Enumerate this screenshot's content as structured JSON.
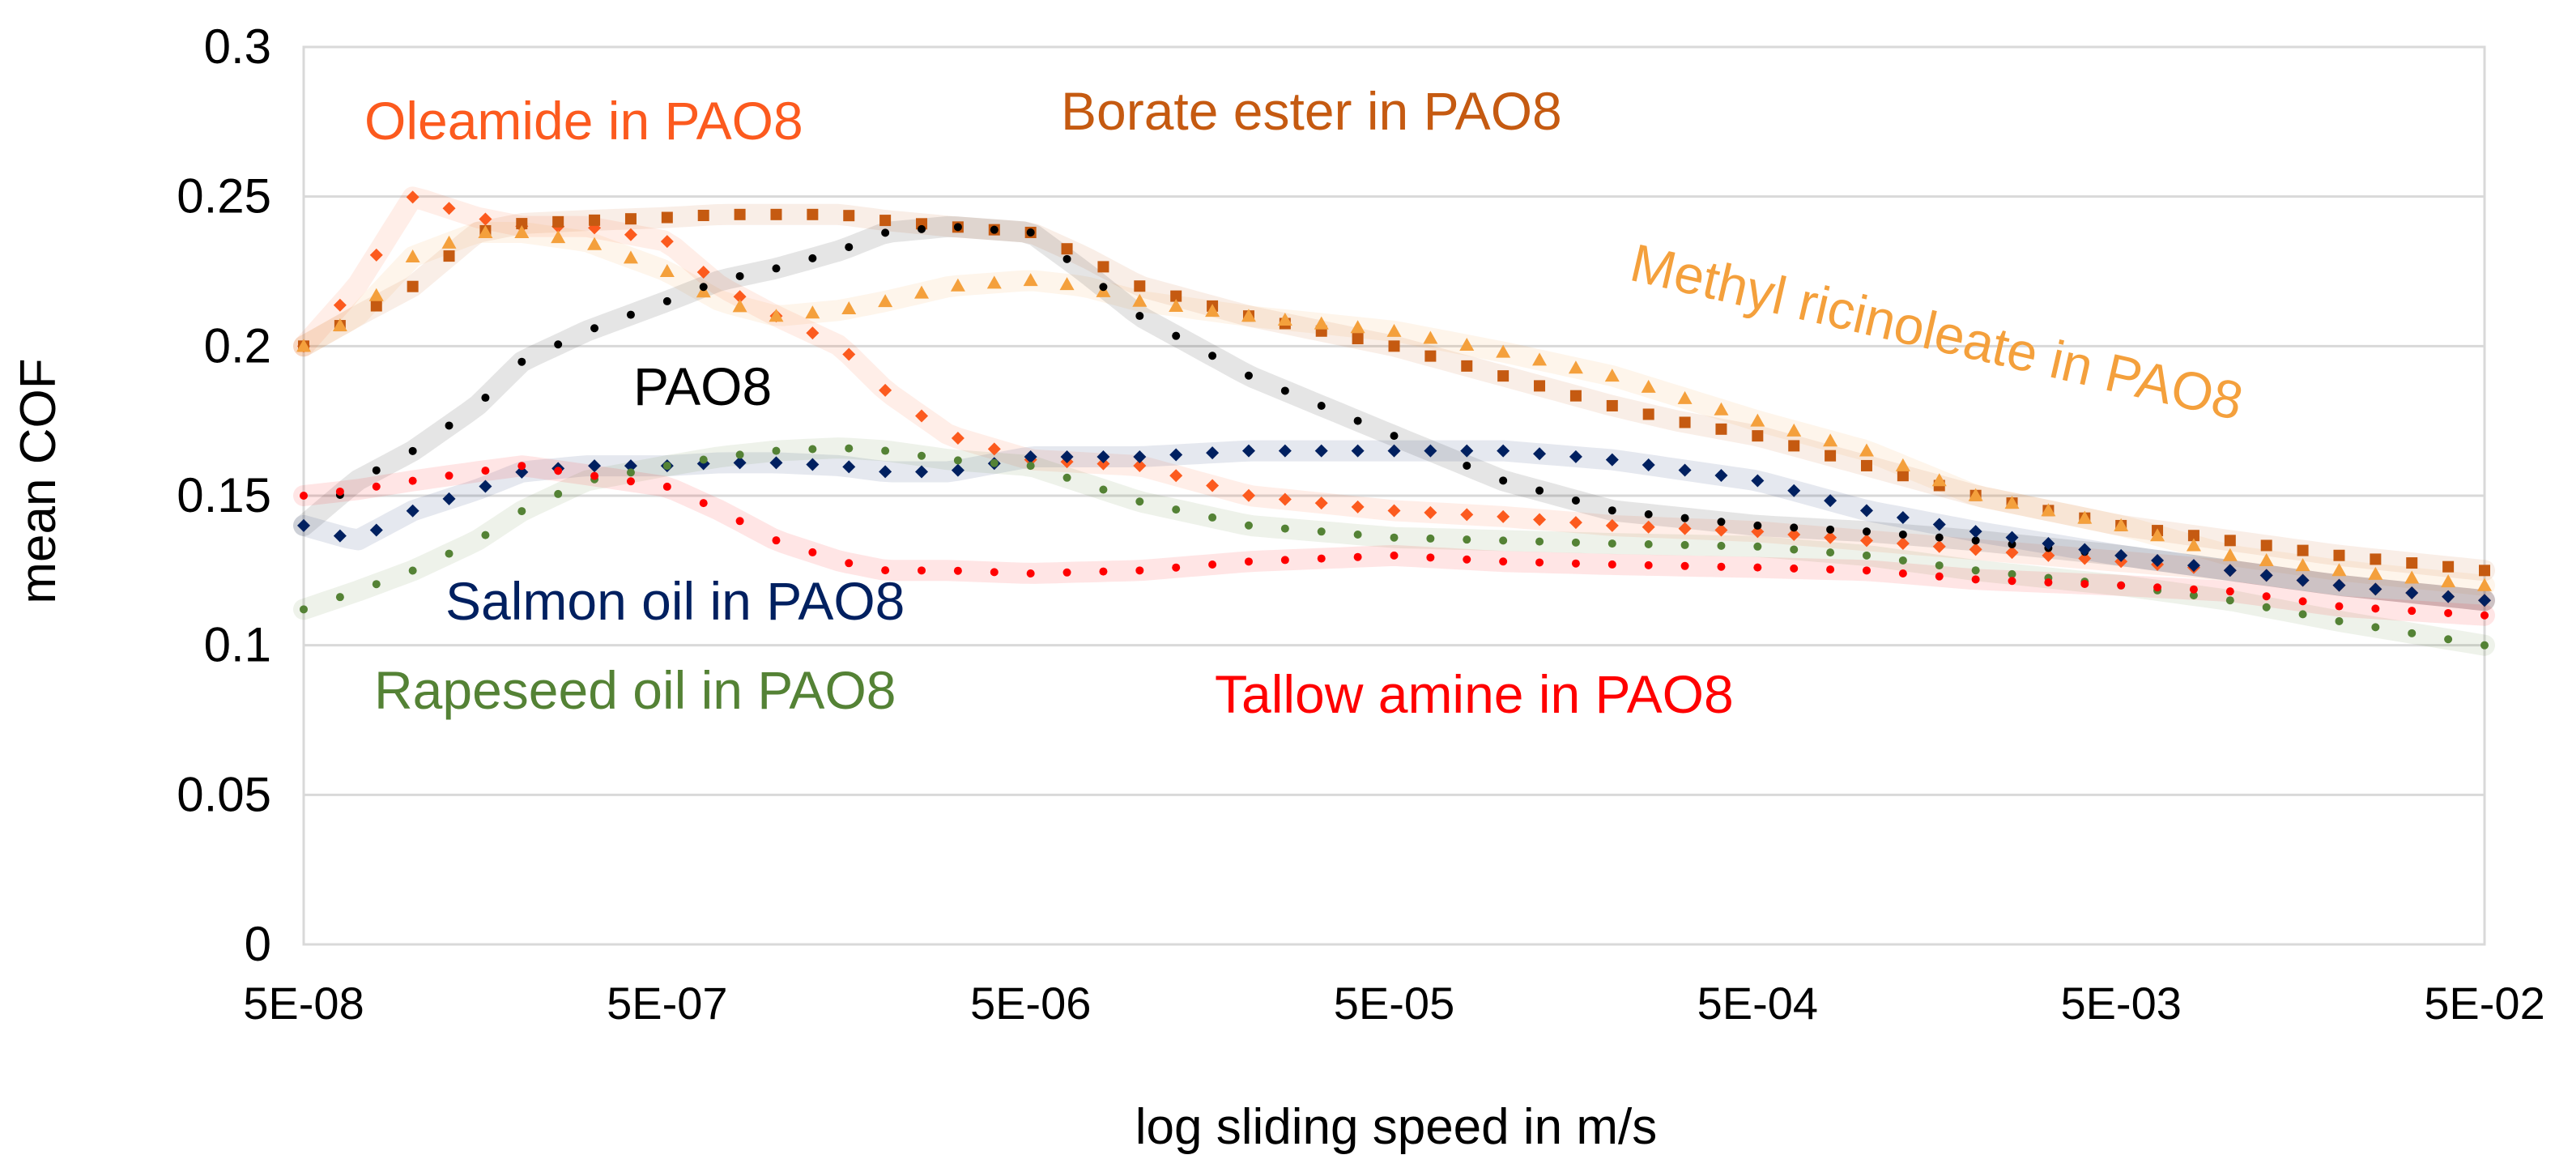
{
  "chart_data": {
    "type": "scatter",
    "title": "",
    "xlabel": "log sliding speed in m/s",
    "ylabel": "mean COF",
    "xscale": "log",
    "xlim": [
      5e-08,
      0.05
    ],
    "ylim": [
      0,
      0.3
    ],
    "x_ticks": [
      "5E-08",
      "5E-07",
      "5E-06",
      "5E-05",
      "5E-04",
      "5E-03",
      "5E-02"
    ],
    "y_ticks": [
      "0",
      "0.05",
      "0.1",
      "0.15",
      "0.2",
      "0.25",
      "0.3"
    ],
    "grid": "horizontal",
    "legend": "inline labels",
    "series": [
      {
        "name": "Oleamide in PAO8",
        "color": "#fc5a1e",
        "marker": "diamond",
        "x": [
          5e-08,
          7e-08,
          1e-07,
          1.5e-07,
          2e-07,
          3e-07,
          5e-07,
          7e-07,
          1e-06,
          1.5e-06,
          2e-06,
          3e-06,
          5e-06,
          1e-05,
          2e-05,
          5e-05,
          0.0001,
          0.0002,
          0.0005,
          0.001,
          0.002,
          0.005,
          0.01,
          0.02,
          0.05
        ],
        "y": [
          0.2,
          0.22,
          0.25,
          0.243,
          0.24,
          0.24,
          0.235,
          0.22,
          0.21,
          0.2,
          0.185,
          0.17,
          0.162,
          0.16,
          0.15,
          0.145,
          0.143,
          0.14,
          0.138,
          0.135,
          0.132,
          0.128,
          0.125,
          0.12,
          0.115
        ]
      },
      {
        "name": "Borate ester in PAO8",
        "color": "#c55a11",
        "marker": "square",
        "x": [
          5e-08,
          7e-08,
          1e-07,
          1.5e-07,
          2e-07,
          3e-07,
          5e-07,
          7e-07,
          1e-06,
          1.5e-06,
          2e-06,
          3e-06,
          5e-06,
          7e-06,
          1e-05,
          2e-05,
          5e-05,
          0.0001,
          0.0002,
          0.0003,
          0.0005,
          0.001,
          0.002,
          0.005,
          0.01,
          0.02,
          0.05
        ],
        "y": [
          0.2,
          0.21,
          0.22,
          0.238,
          0.241,
          0.242,
          0.243,
          0.244,
          0.244,
          0.244,
          0.242,
          0.24,
          0.238,
          0.23,
          0.22,
          0.21,
          0.2,
          0.19,
          0.18,
          0.175,
          0.17,
          0.16,
          0.15,
          0.14,
          0.135,
          0.13,
          0.125
        ]
      },
      {
        "name": "Methyl ricinoleate in PAO8",
        "color": "#f4a03c",
        "marker": "triangle",
        "x": [
          5e-08,
          7e-08,
          1e-07,
          1.5e-07,
          2e-07,
          3e-07,
          5e-07,
          7e-07,
          1e-06,
          1.5e-06,
          2e-06,
          3e-06,
          5e-06,
          7e-06,
          1e-05,
          2e-05,
          5e-05,
          0.0001,
          0.0002,
          0.0005,
          0.001,
          0.002,
          0.005,
          0.01,
          0.02,
          0.05
        ],
        "y": [
          0.2,
          0.21,
          0.23,
          0.238,
          0.238,
          0.235,
          0.225,
          0.215,
          0.21,
          0.212,
          0.215,
          0.22,
          0.222,
          0.22,
          0.215,
          0.21,
          0.205,
          0.198,
          0.19,
          0.175,
          0.165,
          0.15,
          0.14,
          0.13,
          0.125,
          0.12
        ]
      },
      {
        "name": "PAO8",
        "color": "#000000",
        "marker": "dot",
        "x": [
          5e-08,
          7e-08,
          1e-07,
          1.5e-07,
          2e-07,
          3e-07,
          5e-07,
          7e-07,
          1e-06,
          1.5e-06,
          2e-06,
          3e-06,
          5e-06,
          7e-06,
          1e-05,
          2e-05,
          5e-05,
          0.0001,
          0.0002,
          0.0005,
          0.001,
          0.002,
          0.005,
          0.01,
          0.02,
          0.05
        ],
        "y": [
          0.14,
          0.155,
          0.165,
          0.18,
          0.195,
          0.205,
          0.215,
          0.222,
          0.226,
          0.232,
          0.238,
          0.24,
          0.238,
          0.225,
          0.21,
          0.19,
          0.17,
          0.155,
          0.145,
          0.14,
          0.138,
          0.135,
          0.13,
          0.125,
          0.12,
          0.115
        ]
      },
      {
        "name": "Salmon oil in PAO8",
        "color": "#002060",
        "marker": "diamond",
        "x": [
          5e-08,
          7e-08,
          1e-07,
          1.5e-07,
          2e-07,
          3e-07,
          5e-07,
          7e-07,
          1e-06,
          1.5e-06,
          2e-06,
          3e-06,
          5e-06,
          1e-05,
          2e-05,
          5e-05,
          0.0001,
          0.0002,
          0.0005,
          0.001,
          0.002,
          0.005,
          0.01,
          0.02,
          0.05
        ],
        "y": [
          0.14,
          0.135,
          0.145,
          0.152,
          0.158,
          0.16,
          0.16,
          0.161,
          0.161,
          0.16,
          0.158,
          0.158,
          0.163,
          0.163,
          0.165,
          0.165,
          0.165,
          0.162,
          0.155,
          0.145,
          0.138,
          0.13,
          0.125,
          0.12,
          0.115
        ]
      },
      {
        "name": "Rapeseed oil in PAO8",
        "color": "#548235",
        "marker": "dot",
        "x": [
          5e-08,
          7e-08,
          1e-07,
          1.5e-07,
          2e-07,
          3e-07,
          5e-07,
          7e-07,
          1e-06,
          1.5e-06,
          2e-06,
          3e-06,
          5e-06,
          1e-05,
          2e-05,
          5e-05,
          0.0001,
          0.0002,
          0.0005,
          0.001,
          0.002,
          0.005,
          0.01,
          0.02,
          0.05
        ],
        "y": [
          0.112,
          0.118,
          0.125,
          0.135,
          0.145,
          0.155,
          0.16,
          0.163,
          0.165,
          0.166,
          0.165,
          0.162,
          0.16,
          0.148,
          0.14,
          0.136,
          0.135,
          0.134,
          0.133,
          0.13,
          0.125,
          0.12,
          0.115,
          0.108,
          0.1
        ]
      },
      {
        "name": "Tallow amine in PAO8",
        "color": "#ff0000",
        "marker": "dot",
        "x": [
          5e-08,
          7e-08,
          1e-07,
          1.5e-07,
          2e-07,
          3e-07,
          5e-07,
          7e-07,
          1e-06,
          1.5e-06,
          2e-06,
          3e-06,
          5e-06,
          1e-05,
          2e-05,
          5e-05,
          0.0001,
          0.0002,
          0.0005,
          0.001,
          0.002,
          0.005,
          0.01,
          0.02,
          0.05
        ],
        "y": [
          0.15,
          0.152,
          0.155,
          0.158,
          0.16,
          0.157,
          0.153,
          0.145,
          0.135,
          0.128,
          0.125,
          0.125,
          0.124,
          0.125,
          0.128,
          0.13,
          0.128,
          0.127,
          0.126,
          0.125,
          0.122,
          0.12,
          0.118,
          0.113,
          0.11
        ]
      }
    ]
  }
}
